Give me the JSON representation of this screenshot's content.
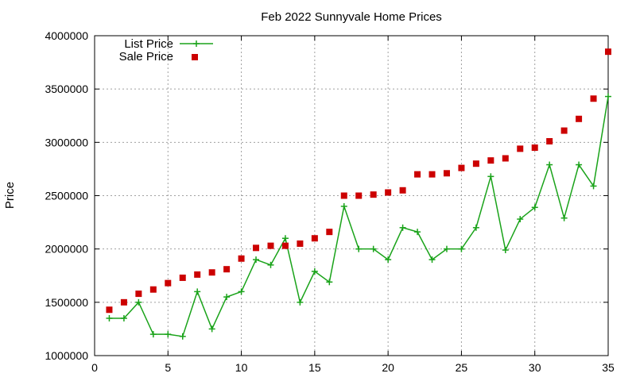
{
  "chart_data": {
    "type": "line",
    "title": "Feb 2022 Sunnyvale Home Prices",
    "xlabel": "",
    "ylabel": "Price",
    "xlim": [
      0,
      35
    ],
    "ylim": [
      1000000,
      4000000
    ],
    "x_ticks": [
      0,
      5,
      10,
      15,
      20,
      25,
      30,
      35
    ],
    "y_ticks": [
      1000000,
      1500000,
      2000000,
      2500000,
      3000000,
      3500000,
      4000000
    ],
    "grid": true,
    "legend_position": "top-left",
    "x": [
      1,
      2,
      3,
      4,
      5,
      6,
      7,
      8,
      9,
      10,
      11,
      12,
      13,
      14,
      15,
      16,
      17,
      18,
      19,
      20,
      21,
      22,
      23,
      24,
      25,
      26,
      27,
      28,
      29,
      30,
      31,
      32,
      33,
      34,
      35
    ],
    "series": [
      {
        "name": "List Price",
        "style": "linespoints",
        "marker": "plus",
        "color": "#1aa31a",
        "values": [
          1350000,
          1350000,
          1500000,
          1200000,
          1200000,
          1180000,
          1600000,
          1250000,
          1550000,
          1600000,
          1900000,
          1850000,
          2100000,
          1500000,
          1790000,
          1690000,
          2400000,
          2000000,
          2000000,
          1900000,
          2200000,
          2160000,
          1900000,
          2000000,
          2000000,
          2200000,
          2680000,
          1990000,
          2280000,
          2390000,
          2790000,
          2290000,
          2790000,
          2590000,
          3430000
        ]
      },
      {
        "name": "Sale Price",
        "style": "points",
        "marker": "square",
        "color": "#cc0000",
        "values": [
          1430000,
          1500000,
          1580000,
          1620000,
          1680000,
          1730000,
          1760000,
          1780000,
          1810000,
          1910000,
          2010000,
          2030000,
          2030000,
          2050000,
          2100000,
          2160000,
          2500000,
          2500000,
          2510000,
          2530000,
          2550000,
          2700000,
          2700000,
          2710000,
          2760000,
          2800000,
          2830000,
          2850000,
          2940000,
          2950000,
          3010000,
          3110000,
          3220000,
          3410000,
          3850000
        ]
      }
    ]
  }
}
